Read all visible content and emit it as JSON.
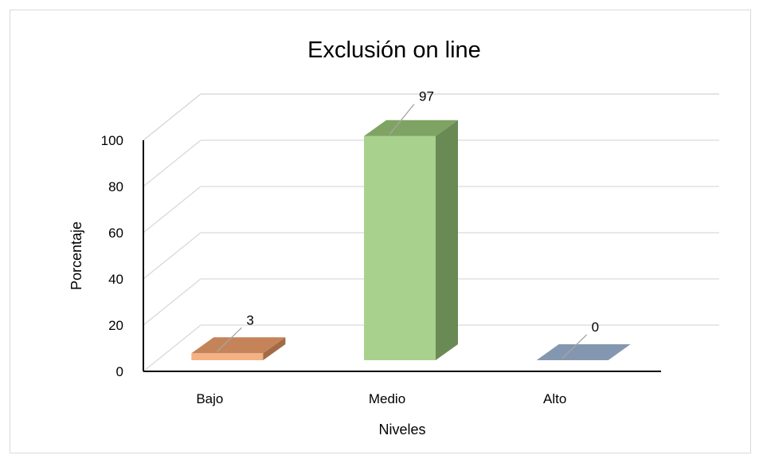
{
  "chart_data": {
    "type": "bar",
    "title": "Exclusión on line",
    "xlabel": "Niveles",
    "ylabel": "Porcentaje",
    "categories": [
      "Bajo",
      "Medio",
      "Alto"
    ],
    "values": [
      3,
      97,
      0
    ],
    "data_labels": [
      "3",
      "97",
      "0"
    ],
    "ylim": [
      0,
      100
    ],
    "yticks": [
      "0",
      "20",
      "40",
      "60",
      "80",
      "100"
    ],
    "grid": true,
    "legend": "none",
    "colors": {
      "Bajo": {
        "front": "#F4B183",
        "top": "#C5835A",
        "side": "#A36A45"
      },
      "Medio": {
        "front": "#A9D18E",
        "top": "#7FA363",
        "side": "#6A8A55"
      },
      "Alto": {
        "front": "#ADB9CA",
        "top": "#8497B0",
        "side": "#6E7F98"
      }
    },
    "gridline_color": "#d9d9d9"
  }
}
